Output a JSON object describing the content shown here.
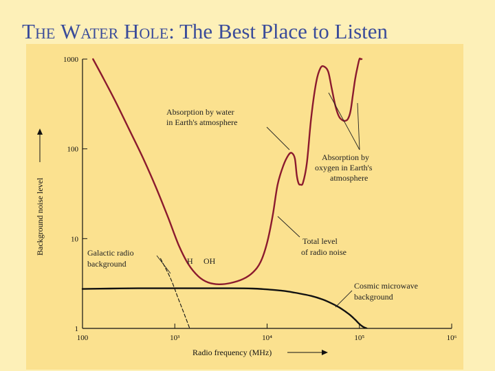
{
  "title": {
    "part1_big": "T",
    "part1_rest": "he ",
    "part2_big": "W",
    "part2_rest": "ater ",
    "part3_big": "H",
    "part3_rest": "ole",
    "tail": ": The Best Place to Listen"
  },
  "chart_data": {
    "type": "line",
    "xlabel": "Radio frequency (MHz)",
    "ylabel": "Background noise level",
    "xscale": "log",
    "yscale": "log",
    "xlim": [
      100,
      1000000
    ],
    "ylim": [
      1,
      1000
    ],
    "xticks": [
      {
        "value": 100,
        "label": "100"
      },
      {
        "value": 1000,
        "label": "10³"
      },
      {
        "value": 10000,
        "label": "10⁴"
      },
      {
        "value": 100000,
        "label": "10⁵"
      },
      {
        "value": 1000000,
        "label": "10⁶"
      }
    ],
    "yticks": [
      {
        "value": 1,
        "label": "1"
      },
      {
        "value": 10,
        "label": "10"
      },
      {
        "value": 100,
        "label": "100"
      },
      {
        "value": 1000,
        "label": "1000"
      }
    ],
    "series": [
      {
        "id": "total",
        "color": "#8b1a2e",
        "x": [
          130,
          170,
          230,
          320,
          450,
          620,
          850,
          1100,
          1400,
          1800,
          2300,
          3000,
          4000,
          5500,
          7000,
          8500,
          10000,
          11500,
          13000,
          15000,
          17000,
          18500,
          20000,
          21000,
          22000,
          23000,
          24500,
          27000,
          30000,
          34000,
          38000,
          42000,
          46000,
          50000,
          55000,
          60000,
          65000,
          70000,
          75000,
          80000,
          85000,
          90000,
          95000,
          100000,
          103000,
          106000
        ],
        "y": [
          1000,
          600,
          330,
          165,
          80,
          38,
          17,
          8.5,
          5.2,
          3.8,
          3.25,
          3.1,
          3.2,
          3.55,
          4.2,
          5.5,
          9,
          18,
          40,
          65,
          85,
          90,
          78,
          50,
          41,
          40,
          42,
          70,
          220,
          550,
          800,
          820,
          720,
          480,
          300,
          230,
          210,
          205,
          215,
          260,
          400,
          600,
          800,
          1000,
          1000,
          1000
        ]
      },
      {
        "id": "cmb",
        "color": "#111111",
        "x": [
          100,
          200,
          400,
          700,
          1000,
          2000,
          4000,
          7000,
          10000,
          15000,
          20000,
          30000,
          40000,
          50000,
          60000,
          70000,
          80000,
          90000,
          100000,
          110000,
          120000
        ],
        "y": [
          2.75,
          2.78,
          2.8,
          2.8,
          2.8,
          2.8,
          2.8,
          2.78,
          2.72,
          2.62,
          2.5,
          2.3,
          2.1,
          1.9,
          1.72,
          1.55,
          1.4,
          1.25,
          1.12,
          1.04,
          1.0
        ]
      },
      {
        "id": "galactic",
        "color": "#111111",
        "dashed": true,
        "x": [
          700,
          900,
          1100,
          1300,
          1450
        ],
        "y": [
          6,
          3.6,
          2.1,
          1.35,
          1.0
        ]
      }
    ],
    "annotations": [
      {
        "id": "water",
        "lines": [
          "Absorption by water",
          "in Earth's atmosphere"
        ]
      },
      {
        "id": "oxygen",
        "lines": [
          "Absorption by",
          "oxygen in Earth's",
          "atmosphere"
        ]
      },
      {
        "id": "total",
        "lines": [
          "Total level",
          "of radio noise"
        ]
      },
      {
        "id": "galactic",
        "lines": [
          "Galactic radio",
          "background"
        ]
      },
      {
        "id": "cmb",
        "lines": [
          "Cosmic microwave",
          "background"
        ]
      },
      {
        "id": "h",
        "lines": [
          "H"
        ]
      },
      {
        "id": "oh",
        "lines": [
          "OH"
        ]
      }
    ]
  }
}
